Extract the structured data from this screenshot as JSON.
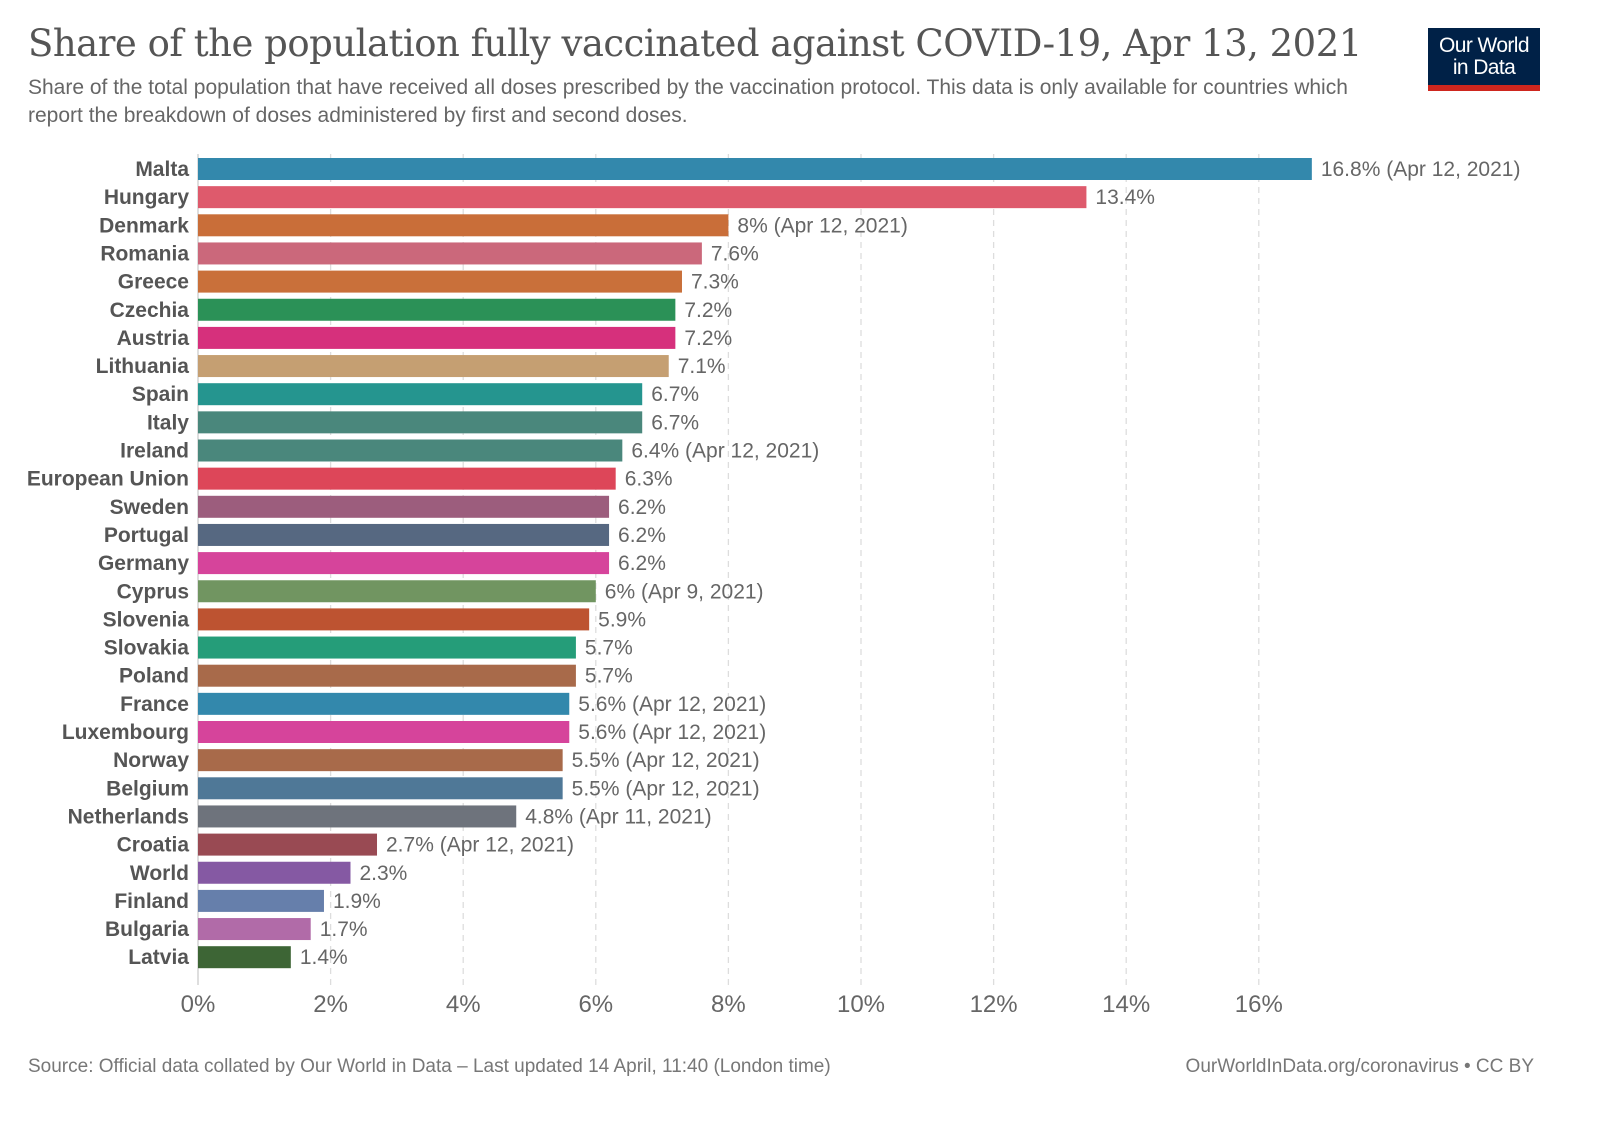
{
  "header": {
    "title": "Share of the population fully vaccinated against COVID-19, Apr 13, 2021",
    "subtitle": "Share of the total population that have received all doses prescribed by the vaccination protocol. This data is only available for countries which report the breakdown of doses administered by first and second doses.",
    "logo_line1": "Our World",
    "logo_line2": "in Data"
  },
  "colors": {
    "logo_bg": "#002147",
    "logo_accent": "#ce261e",
    "gridline": "#dddddd",
    "text": "#555555"
  },
  "footer": {
    "source": "Source: Official data collated by Our World in Data – Last updated 14 April, 11:40 (London time)",
    "link": "OurWorldInData.org/coronavirus",
    "separator": " • ",
    "license": "CC BY"
  },
  "chart_data": {
    "type": "bar",
    "orientation": "horizontal",
    "title": "Share of the population fully vaccinated against COVID-19, Apr 13, 2021",
    "xlabel": "",
    "ylabel": "",
    "unit": "%",
    "xlim": [
      0,
      16.8
    ],
    "xticks": [
      0,
      2,
      4,
      6,
      8,
      10,
      12,
      14,
      16
    ],
    "xtick_labels": [
      "0%",
      "2%",
      "4%",
      "6%",
      "8%",
      "10%",
      "12%",
      "14%",
      "16%"
    ],
    "grid": "vertical-dashed",
    "legend": "none",
    "categories": [
      "Malta",
      "Hungary",
      "Denmark",
      "Romania",
      "Greece",
      "Czechia",
      "Austria",
      "Lithuania",
      "Spain",
      "Italy",
      "Ireland",
      "European Union",
      "Sweden",
      "Portugal",
      "Germany",
      "Cyprus",
      "Slovenia",
      "Slovakia",
      "Poland",
      "France",
      "Luxembourg",
      "Norway",
      "Belgium",
      "Netherlands",
      "Croatia",
      "World",
      "Finland",
      "Bulgaria",
      "Latvia"
    ],
    "values": [
      16.8,
      13.4,
      8.0,
      7.6,
      7.3,
      7.2,
      7.2,
      7.1,
      6.7,
      6.7,
      6.4,
      6.3,
      6.2,
      6.2,
      6.2,
      6.0,
      5.9,
      5.7,
      5.7,
      5.6,
      5.6,
      5.5,
      5.5,
      4.8,
      2.7,
      2.3,
      1.9,
      1.7,
      1.4
    ],
    "value_labels": [
      "16.8% (Apr 12, 2021)",
      "13.4%",
      "8% (Apr 12, 2021)",
      "7.6%",
      "7.3%",
      "7.2%",
      "7.2%",
      "7.1%",
      "6.7%",
      "6.7%",
      "6.4% (Apr 12, 2021)",
      "6.3%",
      "6.2%",
      "6.2%",
      "6.2%",
      "6% (Apr 9, 2021)",
      "5.9%",
      "5.7%",
      "5.7%",
      "5.6% (Apr 12, 2021)",
      "5.6% (Apr 12, 2021)",
      "5.5% (Apr 12, 2021)",
      "5.5% (Apr 12, 2021)",
      "4.8% (Apr 11, 2021)",
      "2.7% (Apr 12, 2021)",
      "2.3%",
      "1.9%",
      "1.7%",
      "1.4%"
    ],
    "bar_colors": [
      "#3388ac",
      "#de5a6c",
      "#c96e39",
      "#cb687b",
      "#c9703a",
      "#2b9157",
      "#d6307c",
      "#c59f72",
      "#25958f",
      "#4a877c",
      "#4a877c",
      "#dd4659",
      "#9c5d7d",
      "#566881",
      "#d6449b",
      "#719561",
      "#bd5331",
      "#259d79",
      "#a86a4a",
      "#3388ac",
      "#d6449b",
      "#a86a4a",
      "#4f7897",
      "#6e737c",
      "#994a53",
      "#8559a3",
      "#667fab",
      "#b16ba8",
      "#3d6535"
    ]
  }
}
